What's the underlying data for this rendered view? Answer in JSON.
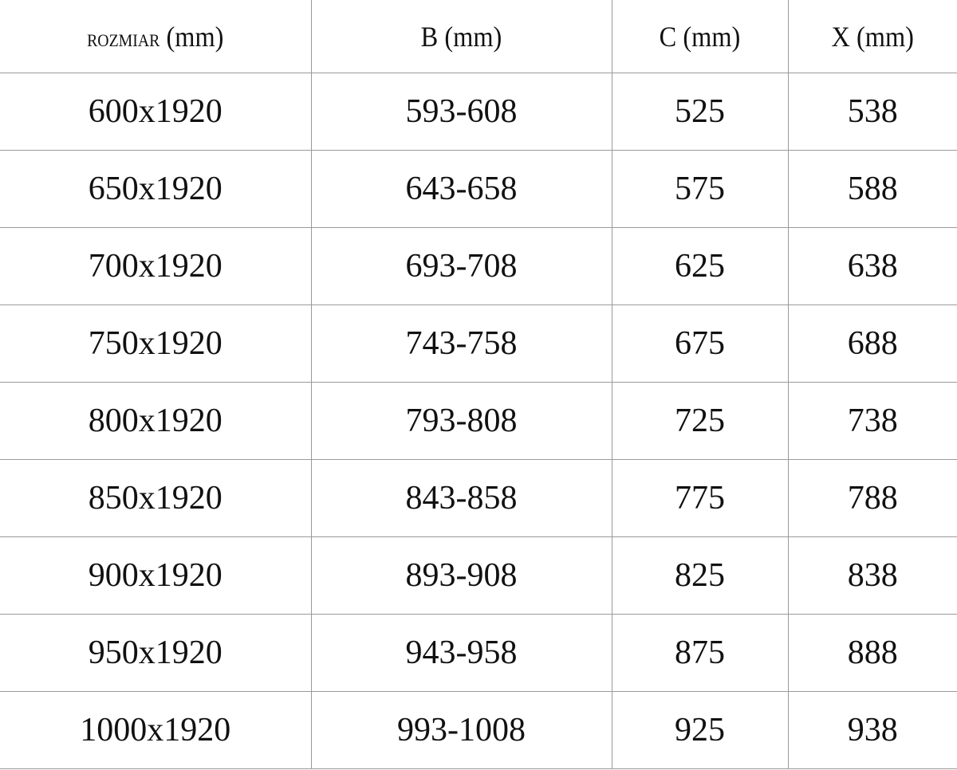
{
  "table": {
    "headers": [
      {
        "main": "ROZMIAR",
        "unit": "(mm)"
      },
      {
        "main": "B",
        "unit": "(mm)"
      },
      {
        "main": "C",
        "unit": "(mm)"
      },
      {
        "main": "X",
        "unit": "(mm)"
      }
    ],
    "rows": [
      [
        "600x1920",
        "593-608",
        "525",
        "538"
      ],
      [
        "650x1920",
        "643-658",
        "575",
        "588"
      ],
      [
        "700x1920",
        "693-708",
        "625",
        "638"
      ],
      [
        "750x1920",
        "743-758",
        "675",
        "688"
      ],
      [
        "800x1920",
        "793-808",
        "725",
        "738"
      ],
      [
        "850x1920",
        "843-858",
        "775",
        "788"
      ],
      [
        "900x1920",
        "893-908",
        "825",
        "838"
      ],
      [
        "950x1920",
        "943-958",
        "875",
        "888"
      ],
      [
        "1000x1920",
        "993-1008",
        "925",
        "938"
      ]
    ]
  }
}
